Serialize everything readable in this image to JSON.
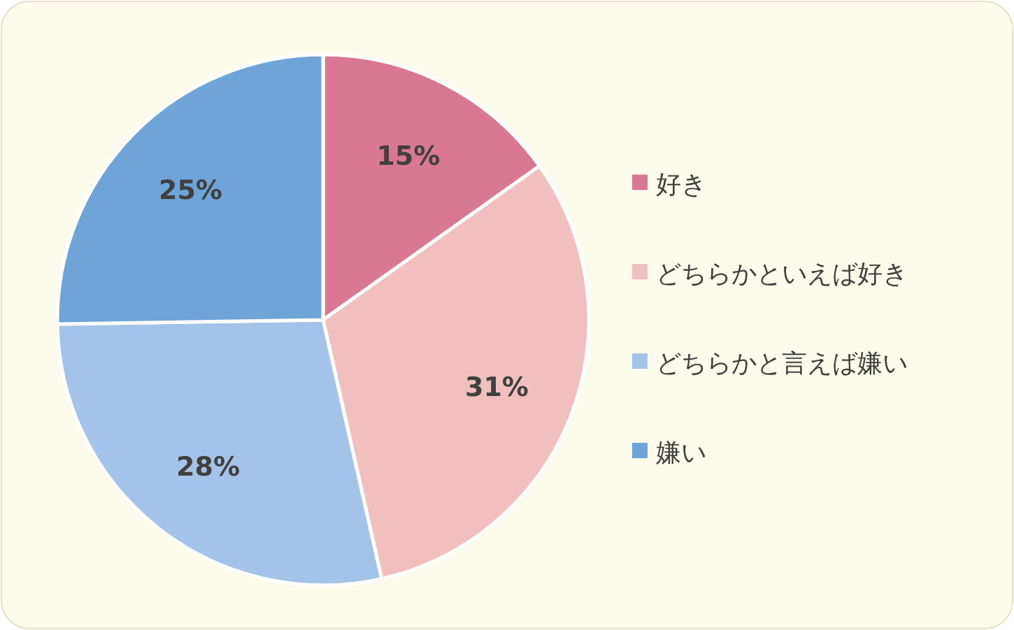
{
  "chart_data": {
    "type": "pie",
    "categories": [
      "好き",
      "どちらかといえば好き",
      "どちらかと言えば嫌い",
      "嫌い"
    ],
    "values": [
      15,
      31,
      28,
      25
    ],
    "colors": [
      "#d87892",
      "#f2bfbf",
      "#a3c4e8",
      "#6fa4d8"
    ],
    "value_labels": [
      "15%",
      "31%",
      "28%",
      "25%"
    ],
    "legend": "right"
  }
}
